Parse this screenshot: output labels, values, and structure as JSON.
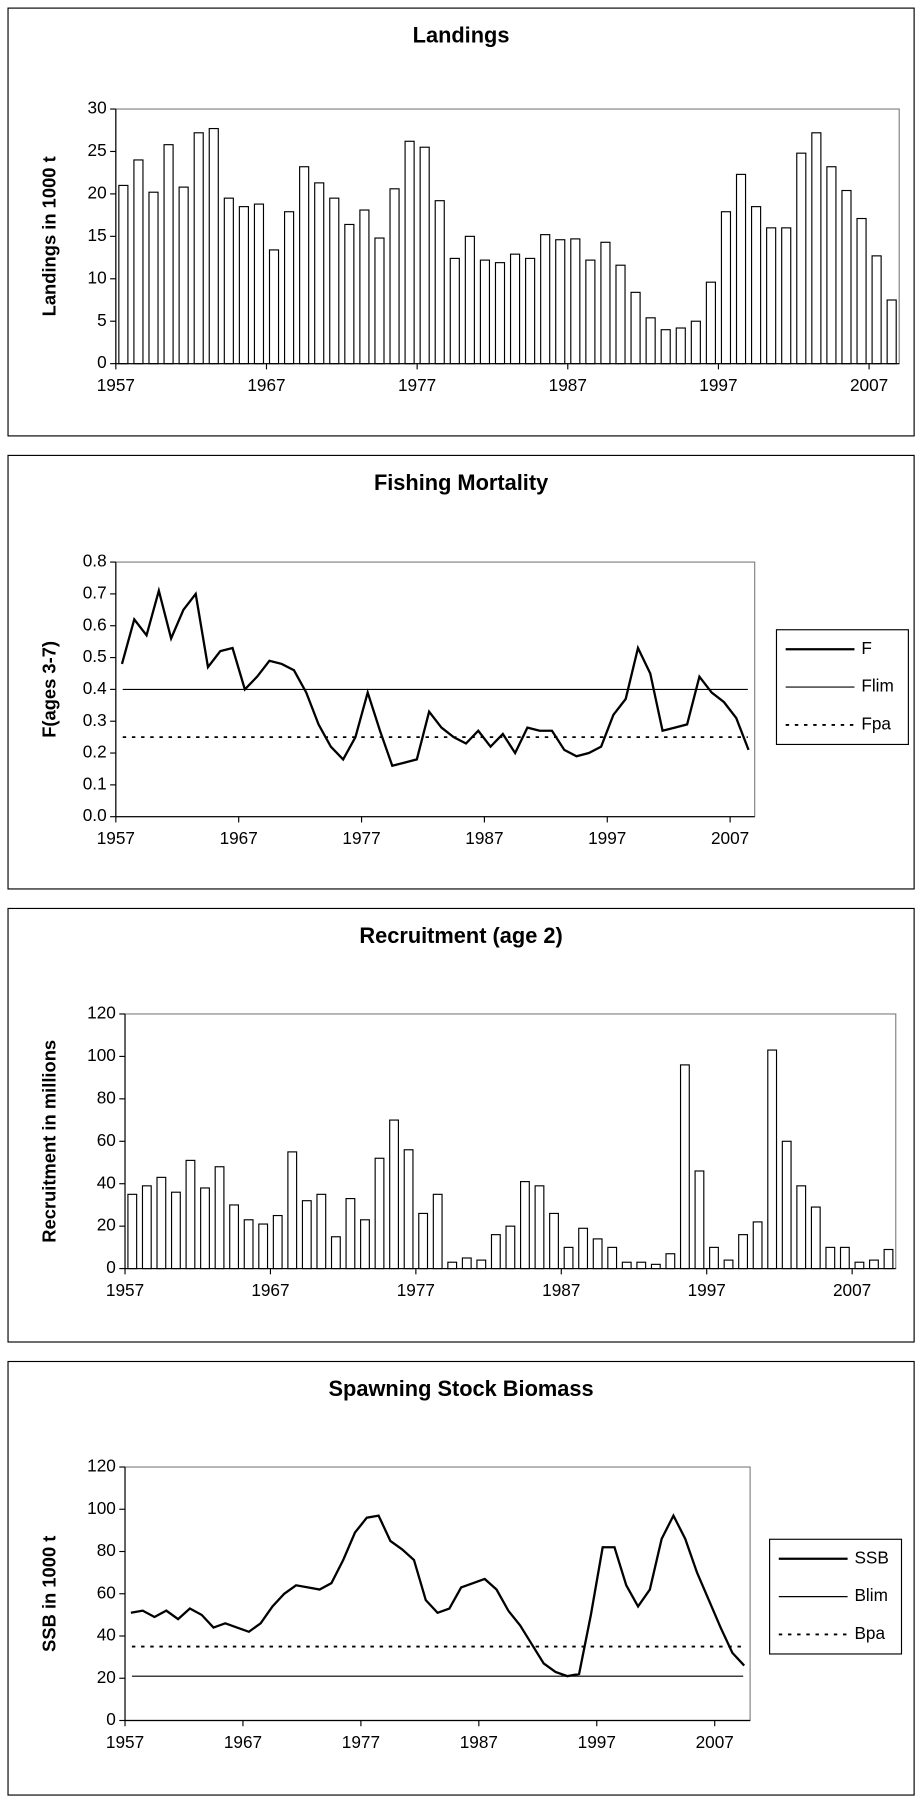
{
  "chart_data": [
    {
      "type": "bar",
      "title": "Landings",
      "y_label": "Landings in 1000 t",
      "x": [
        1957,
        1958,
        1959,
        1960,
        1961,
        1962,
        1963,
        1964,
        1965,
        1966,
        1967,
        1968,
        1969,
        1970,
        1971,
        1972,
        1973,
        1974,
        1975,
        1976,
        1977,
        1978,
        1979,
        1980,
        1981,
        1982,
        1983,
        1984,
        1985,
        1986,
        1987,
        1988,
        1989,
        1990,
        1991,
        1992,
        1993,
        1994,
        1995,
        1996,
        1997,
        1998,
        1999,
        2000,
        2001,
        2002,
        2003,
        2004,
        2005,
        2006,
        2007,
        2008
      ],
      "series": [
        {
          "color": "#000000",
          "values": [
            21,
            24,
            20.2,
            25.8,
            20.8,
            27.2,
            27.7,
            19.5,
            18.5,
            18.8,
            13.4,
            17.9,
            23.2,
            21.3,
            19.5,
            16.4,
            18.1,
            14.8,
            20.6,
            26.2,
            25.5,
            19.2,
            12.4,
            15,
            12.2,
            11.9,
            12.9,
            12.4,
            15.2,
            14.6,
            14.7,
            12.2,
            14.3,
            11.6,
            8.4,
            5.4,
            4,
            4.2,
            5,
            9.6,
            17.9,
            22.3,
            18.5,
            16,
            16,
            24.8,
            27.2,
            23.2,
            20.4,
            17.1,
            12.7,
            7.5
          ]
        }
      ],
      "xlim": [
        1957,
        2009
      ],
      "xticks": [
        1957,
        1967,
        1977,
        1987,
        1997,
        2007
      ],
      "ylim": [
        0,
        30
      ],
      "yticks": [
        0,
        5,
        10,
        15,
        20,
        25,
        30
      ]
    },
    {
      "type": "line",
      "title": "Fishing Mortality",
      "y_label": "F(ages 3-7)",
      "x": [
        1957,
        1958,
        1959,
        1960,
        1961,
        1962,
        1963,
        1964,
        1965,
        1966,
        1967,
        1968,
        1969,
        1970,
        1971,
        1972,
        1973,
        1974,
        1975,
        1976,
        1977,
        1978,
        1979,
        1980,
        1981,
        1982,
        1983,
        1984,
        1985,
        1986,
        1987,
        1988,
        1989,
        1990,
        1991,
        1992,
        1993,
        1994,
        1995,
        1996,
        1997,
        1998,
        1999,
        2000,
        2001,
        2002,
        2003,
        2004,
        2005,
        2006,
        2007,
        2008
      ],
      "series": [
        {
          "name": "F",
          "color": "#000000",
          "values": [
            0.48,
            0.62,
            0.57,
            0.71,
            0.56,
            0.65,
            0.7,
            0.47,
            0.52,
            0.53,
            0.4,
            0.44,
            0.49,
            0.48,
            0.46,
            0.39,
            0.29,
            0.22,
            0.18,
            0.25,
            0.39,
            0.27,
            0.16,
            0.17,
            0.18,
            0.33,
            0.28,
            0.25,
            0.23,
            0.27,
            0.22,
            0.26,
            0.2,
            0.28,
            0.27,
            0.27,
            0.21,
            0.19,
            0.2,
            0.22,
            0.32,
            0.37,
            0.53,
            0.45,
            0.27,
            0.28,
            0.29,
            0.44,
            0.39,
            0.36,
            0.31,
            0.21
          ]
        }
      ],
      "reference_lines": [
        {
          "name": "Flim",
          "value": 0.4,
          "style": "solid"
        },
        {
          "name": "Fpa",
          "value": 0.25,
          "style": "dotted"
        }
      ],
      "legend": "right",
      "xlim": [
        1957,
        2009
      ],
      "xticks": [
        1957,
        1967,
        1977,
        1987,
        1997,
        2007
      ],
      "ylim": [
        0,
        0.8
      ],
      "yticks": [
        {
          "value": 0,
          "label": "0.0"
        },
        0.1,
        0.2,
        0.3,
        0.4,
        0.5,
        0.6,
        0.7,
        0.8
      ]
    },
    {
      "type": "bar",
      "title": "Recruitment (age 2)",
      "y_label": "Recruitment in millions",
      "x": [
        1957,
        1958,
        1959,
        1960,
        1961,
        1962,
        1963,
        1964,
        1965,
        1966,
        1967,
        1968,
        1969,
        1970,
        1971,
        1972,
        1973,
        1974,
        1975,
        1976,
        1977,
        1978,
        1979,
        1980,
        1981,
        1982,
        1983,
        1984,
        1985,
        1986,
        1987,
        1988,
        1989,
        1990,
        1991,
        1992,
        1993,
        1994,
        1995,
        1996,
        1997,
        1998,
        1999,
        2000,
        2001,
        2002,
        2003,
        2004,
        2005,
        2006,
        2007,
        2008,
        2009
      ],
      "series": [
        {
          "color": "#000000",
          "values": [
            35,
            39,
            43,
            36,
            51,
            38,
            48,
            30,
            23,
            21,
            25,
            55,
            32,
            35,
            15,
            33,
            23,
            52,
            70,
            56,
            26,
            35,
            3,
            5,
            4,
            16,
            20,
            41,
            39,
            26,
            10,
            19,
            14,
            10,
            3,
            3,
            2,
            7,
            96,
            46,
            10,
            4,
            16,
            22,
            103,
            60,
            39,
            29,
            10,
            10,
            3,
            4,
            9
          ]
        }
      ],
      "xlim": [
        1957,
        2010
      ],
      "xticks": [
        1957,
        1967,
        1977,
        1987,
        1997,
        2007
      ],
      "ylim": [
        0,
        120
      ],
      "yticks": [
        0,
        20,
        40,
        60,
        80,
        100,
        120
      ]
    },
    {
      "type": "line",
      "title": "Spawning Stock Biomass",
      "y_label": "SSB in 1000 t",
      "x": [
        1957,
        1958,
        1959,
        1960,
        1961,
        1962,
        1963,
        1964,
        1965,
        1966,
        1967,
        1968,
        1969,
        1970,
        1971,
        1972,
        1973,
        1974,
        1975,
        1976,
        1977,
        1978,
        1979,
        1980,
        1981,
        1982,
        1983,
        1984,
        1985,
        1986,
        1987,
        1988,
        1989,
        1990,
        1991,
        1992,
        1993,
        1994,
        1995,
        1996,
        1997,
        1998,
        1999,
        2000,
        2001,
        2002,
        2003,
        2004,
        2005,
        2006,
        2007,
        2008,
        2009
      ],
      "series": [
        {
          "name": "SSB",
          "color": "#000000",
          "values": [
            51,
            52,
            49,
            52,
            48,
            53,
            50,
            44,
            46,
            44,
            42,
            46,
            54,
            60,
            64,
            63,
            62,
            65,
            76,
            89,
            96,
            97,
            85,
            81,
            76,
            57,
            51,
            53,
            63,
            65,
            67,
            62,
            52,
            45,
            36,
            27,
            23,
            21,
            22,
            50,
            82,
            82,
            64,
            54,
            62,
            86,
            97,
            86,
            70,
            57,
            44,
            32,
            26
          ]
        }
      ],
      "reference_lines": [
        {
          "name": "Blim",
          "value": 21,
          "style": "solid"
        },
        {
          "name": "Bpa",
          "value": 35,
          "style": "dotted"
        }
      ],
      "legend": "right",
      "xlim": [
        1957,
        2010
      ],
      "xticks": [
        1957,
        1967,
        1977,
        1987,
        1997,
        2007
      ],
      "ylim": [
        0,
        120
      ],
      "yticks": [
        0,
        20,
        40,
        60,
        80,
        100,
        120
      ]
    }
  ]
}
